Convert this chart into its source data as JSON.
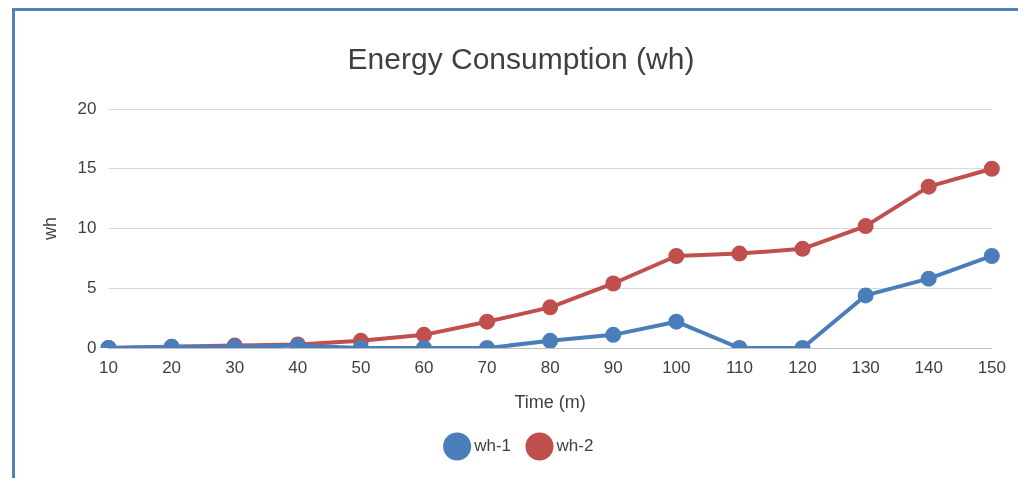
{
  "chart_data": {
    "type": "line",
    "title": "Energy Consumption (wh)",
    "xlabel": "Time (m)",
    "ylabel": "wh",
    "categories": [
      "10",
      "20",
      "30",
      "40",
      "50",
      "60",
      "70",
      "80",
      "90",
      "100",
      "110",
      "120",
      "130",
      "140",
      "150"
    ],
    "series": [
      {
        "name": "wh-1",
        "color": "#4a7ebb",
        "values": [
          0,
          0.1,
          0.1,
          0.2,
          0,
          0,
          0,
          0.6,
          1.1,
          2.2,
          0,
          0,
          4.4,
          5.8,
          7.7
        ]
      },
      {
        "name": "wh-2",
        "color": "#c0504d",
        "values": [
          0,
          0.1,
          0.2,
          0.3,
          0.6,
          1.1,
          2.2,
          3.4,
          5.4,
          7.7,
          7.9,
          8.3,
          10.2,
          13.5,
          15
        ]
      }
    ],
    "ylim": [
      0,
      20
    ],
    "yticks": [
      0,
      5,
      10,
      15,
      20
    ],
    "grid": "y",
    "legend": "bottom",
    "marker": "circle",
    "line_style": "solid"
  }
}
